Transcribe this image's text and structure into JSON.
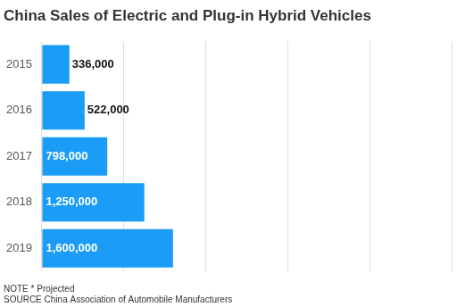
{
  "chart_data": {
    "type": "bar",
    "title": "China Sales of Electric and Plug-in Hybrid Vehicles",
    "annotations": [
      "NOTE * Projected",
      "SOURCE China Association of Automobile Manufacturers"
    ],
    "categories": [
      "2015",
      "2016",
      "2017",
      "2018",
      "2019"
    ],
    "values": [
      336000,
      522000,
      798000,
      1250000,
      1600000
    ],
    "value_labels": [
      "336,000",
      "522,000",
      "798,000",
      "1,250,000",
      "1,600,000"
    ],
    "color": "#1a9cf7",
    "orientation": "horizontal",
    "xlim": [
      0,
      5000000
    ],
    "xticks": [
      0,
      1000000,
      2000000,
      3000000,
      4000000,
      5000000
    ],
    "grid": true,
    "data_labels": true,
    "tick_labels": "y"
  }
}
